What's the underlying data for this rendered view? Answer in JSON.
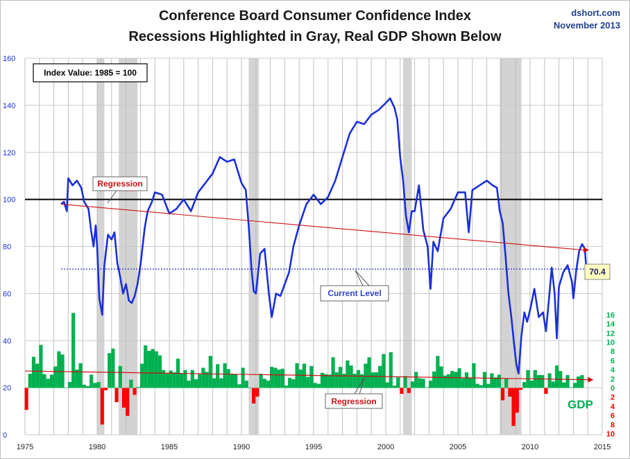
{
  "title": "Conference Board Consumer Confidence Index",
  "subtitle": "Recessions Highlighted in Gray, Real GDP Shown Below",
  "source": "dshort.com",
  "date": "November 2013",
  "colors": {
    "cci_line": "#1a2fd9",
    "gdp_positive": "#00b050",
    "gdp_negative": "#ff0000",
    "regression": "#cc1111",
    "recession_band": "#d3d3d3",
    "reference_line": "#000000",
    "current_level": "#3344cc",
    "left_axis_text": "#1a2fd9"
  },
  "chart_data": [
    {
      "type": "line",
      "name": "consumer-confidence",
      "xlim": [
        1975,
        2015
      ],
      "ylim": [
        0,
        160
      ],
      "xticks": [
        "1975",
        "1980",
        "1985",
        "1990",
        "1995",
        "2000",
        "2005",
        "2010",
        "2015"
      ],
      "yticks": [
        "0",
        "20",
        "40",
        "60",
        "80",
        "100",
        "120",
        "140",
        "160"
      ],
      "grid": true,
      "recessions": [
        [
          1980.0,
          1980.5
        ],
        [
          1981.5,
          1982.8
        ],
        [
          1990.5,
          1991.2
        ],
        [
          2001.2,
          2001.8
        ],
        [
          2007.9,
          2009.4
        ]
      ],
      "reference_line": 100,
      "current_level": 70.4,
      "current_level_label": "70.4",
      "series": [
        {
          "x": [
            1977.5,
            1977.7,
            1977.9,
            1978.0,
            1978.3,
            1978.6,
            1978.9,
            1979.1,
            1979.4,
            1979.6,
            1979.75,
            1979.9,
            1980.0,
            1980.15,
            1980.35,
            1980.5,
            1980.75,
            1981.0,
            1981.2,
            1981.4,
            1981.6,
            1981.8,
            1982.0,
            1982.2,
            1982.4,
            1982.6,
            1982.8,
            1983.0,
            1983.3,
            1983.5,
            1983.8,
            1984.0,
            1984.5,
            1985.0,
            1985.5,
            1986.0,
            1986.5,
            1987.0,
            1987.5,
            1988.0,
            1988.5,
            1989.0,
            1989.5,
            1990.0,
            1990.3,
            1990.5,
            1990.7,
            1990.85,
            1991.0,
            1991.3,
            1991.6,
            1991.9,
            1992.1,
            1992.4,
            1992.7,
            1993.0,
            1993.3,
            1993.6,
            1994.0,
            1994.5,
            1995.0,
            1995.5,
            1996.0,
            1996.5,
            1997.0,
            1997.5,
            1998.0,
            1998.5,
            1999.0,
            1999.5,
            2000.0,
            2000.3,
            2000.6,
            2000.8,
            2001.0,
            2001.2,
            2001.4,
            2001.6,
            2001.8,
            2002.0,
            2002.3,
            2002.6,
            2002.9,
            2003.1,
            2003.3,
            2003.6,
            2004.0,
            2004.5,
            2005.0,
            2005.5,
            2005.75,
            2006.0,
            2006.5,
            2007.0,
            2007.4,
            2007.7,
            2007.9,
            2008.1,
            2008.3,
            2008.5,
            2008.7,
            2008.9,
            2009.05,
            2009.2,
            2009.4,
            2009.6,
            2009.8,
            2010.0,
            2010.3,
            2010.6,
            2010.9,
            2011.1,
            2011.3,
            2011.5,
            2011.7,
            2011.85,
            2012.0,
            2012.3,
            2012.6,
            2012.9,
            2013.0,
            2013.2,
            2013.4,
            2013.6,
            2013.8,
            2013.9
          ],
          "values": [
            98,
            99,
            95,
            109,
            106,
            108,
            105,
            99,
            96,
            86,
            80,
            89,
            80,
            58,
            51,
            72,
            85,
            83,
            86,
            73,
            67,
            60,
            64,
            57,
            56,
            59,
            64,
            72,
            88,
            95,
            99,
            103,
            102,
            94,
            96,
            100,
            95,
            103,
            107,
            111,
            118,
            116,
            117,
            107,
            104,
            89,
            70,
            61,
            60,
            77,
            79,
            60,
            50,
            60,
            59,
            64,
            69,
            80,
            89,
            98,
            102,
            98,
            101,
            108,
            118,
            128,
            133,
            132,
            136,
            138,
            141,
            143,
            139,
            134,
            118,
            108,
            93,
            86,
            95,
            95,
            106,
            87,
            80,
            62,
            82,
            78,
            92,
            96,
            103,
            103,
            86,
            104,
            106,
            108,
            106,
            105,
            95,
            90,
            76,
            60,
            50,
            38,
            30,
            26,
            42,
            52,
            48,
            53,
            62,
            50,
            52,
            44,
            57,
            71,
            60,
            41,
            63,
            69,
            72,
            65,
            58,
            70,
            78,
            81,
            79,
            70
          ]
        },
        {
          "name": "Regression",
          "x": [
            1977.5,
            2013.8
          ],
          "values": [
            98,
            78.5
          ]
        }
      ],
      "annotations": [
        "Index Value: 1985 = 100",
        "Regression",
        "Current Level"
      ]
    },
    {
      "type": "bar",
      "name": "real-gdp",
      "label": "GDP",
      "ylim": [
        -10,
        16
      ],
      "yticks_positive": [
        "16",
        "14",
        "12",
        "10",
        "8",
        "6",
        "4",
        "2",
        "0"
      ],
      "yticks_negative": [
        "2",
        "4",
        "6",
        "8",
        "10"
      ],
      "x": [
        1975.1,
        1975.35,
        1975.6,
        1975.85,
        1976.1,
        1976.35,
        1976.6,
        1976.85,
        1977.1,
        1977.35,
        1977.6,
        1977.85,
        1978.1,
        1978.35,
        1978.6,
        1978.85,
        1979.1,
        1979.35,
        1979.6,
        1979.85,
        1980.1,
        1980.35,
        1980.6,
        1980.85,
        1981.1,
        1981.35,
        1981.6,
        1981.85,
        1982.1,
        1982.35,
        1982.6,
        1982.85,
        1983.1,
        1983.35,
        1983.6,
        1983.85,
        1984.1,
        1984.35,
        1984.6,
        1984.85,
        1985.1,
        1985.35,
        1985.6,
        1985.85,
        1986.1,
        1986.35,
        1986.6,
        1986.85,
        1987.1,
        1987.35,
        1987.6,
        1987.85,
        1988.1,
        1988.35,
        1988.6,
        1988.85,
        1989.1,
        1989.35,
        1989.6,
        1989.85,
        1990.1,
        1990.35,
        1990.6,
        1990.85,
        1991.1,
        1991.35,
        1991.6,
        1991.85,
        1992.1,
        1992.35,
        1992.6,
        1992.85,
        1993.1,
        1993.35,
        1993.6,
        1993.85,
        1994.1,
        1994.35,
        1994.6,
        1994.85,
        1995.1,
        1995.35,
        1995.6,
        1995.85,
        1996.1,
        1996.35,
        1996.6,
        1996.85,
        1997.1,
        1997.35,
        1997.6,
        1997.85,
        1998.1,
        1998.35,
        1998.6,
        1998.85,
        1999.1,
        1999.35,
        1999.6,
        1999.85,
        2000.1,
        2000.35,
        2000.6,
        2000.85,
        2001.1,
        2001.35,
        2001.6,
        2001.85,
        2002.1,
        2002.35,
        2002.6,
        2002.85,
        2003.1,
        2003.35,
        2003.6,
        2003.85,
        2004.1,
        2004.35,
        2004.6,
        2004.85,
        2005.1,
        2005.35,
        2005.6,
        2005.85,
        2006.1,
        2006.35,
        2006.6,
        2006.85,
        2007.1,
        2007.35,
        2007.6,
        2007.85,
        2008.1,
        2008.35,
        2008.6,
        2008.85,
        2009.1,
        2009.35,
        2009.6,
        2009.85,
        2010.1,
        2010.35,
        2010.6,
        2010.85,
        2011.1,
        2011.35,
        2011.6,
        2011.85,
        2012.1,
        2012.35,
        2012.6,
        2012.85,
        2013.1,
        2013.35,
        2013.6
      ],
      "values": [
        -4.8,
        3.1,
        6.8,
        5.3,
        9.4,
        3.0,
        2.0,
        2.9,
        4.7,
        8.0,
        7.3,
        0.0,
        1.3,
        16.4,
        4.0,
        5.4,
        0.7,
        0.4,
        2.9,
        1.1,
        1.3,
        -8.0,
        -0.5,
        7.6,
        8.6,
        -3.1,
        4.8,
        -4.3,
        -6.1,
        1.8,
        -1.5,
        0.2,
        5.3,
        9.3,
        8.1,
        8.5,
        8.0,
        7.1,
        3.9,
        3.3,
        3.8,
        3.4,
        6.4,
        3.1,
        3.9,
        1.6,
        3.9,
        1.9,
        3.0,
        4.4,
        3.5,
        7.0,
        2.1,
        5.2,
        2.1,
        5.4,
        4.1,
        3.1,
        3.0,
        0.8,
        4.4,
        1.6,
        0.0,
        -3.4,
        -1.9,
        3.1,
        2.0,
        1.6,
        4.6,
        4.4,
        4.0,
        4.2,
        0.5,
        2.2,
        1.9,
        5.4,
        4.0,
        5.3,
        2.4,
        4.8,
        1.1,
        0.9,
        3.3,
        3.0,
        2.9,
        6.7,
        3.4,
        4.6,
        3.1,
        6.0,
        4.9,
        3.1,
        3.9,
        3.0,
        5.3,
        6.7,
        3.4,
        3.4,
        4.8,
        7.4,
        1.2,
        7.8,
        0.5,
        2.3,
        -1.3,
        2.6,
        -1.1,
        1.4,
        3.5,
        2.1,
        2.0,
        0.1,
        1.6,
        3.6,
        7.0,
        4.7,
        2.7,
        3.0,
        3.7,
        3.5,
        4.3,
        2.1,
        3.4,
        2.3,
        5.4,
        0.9,
        0.6,
        3.5,
        0.9,
        3.2,
        2.3,
        2.9,
        -2.7,
        2.0,
        -1.9,
        -8.3,
        -5.4,
        -0.4,
        1.3,
        3.9,
        1.6,
        3.9,
        2.8,
        2.8,
        -1.3,
        3.2,
        1.4,
        4.9,
        3.7,
        1.2,
        2.8,
        0.1,
        1.1,
        2.5,
        2.8
      ]
    }
  ]
}
